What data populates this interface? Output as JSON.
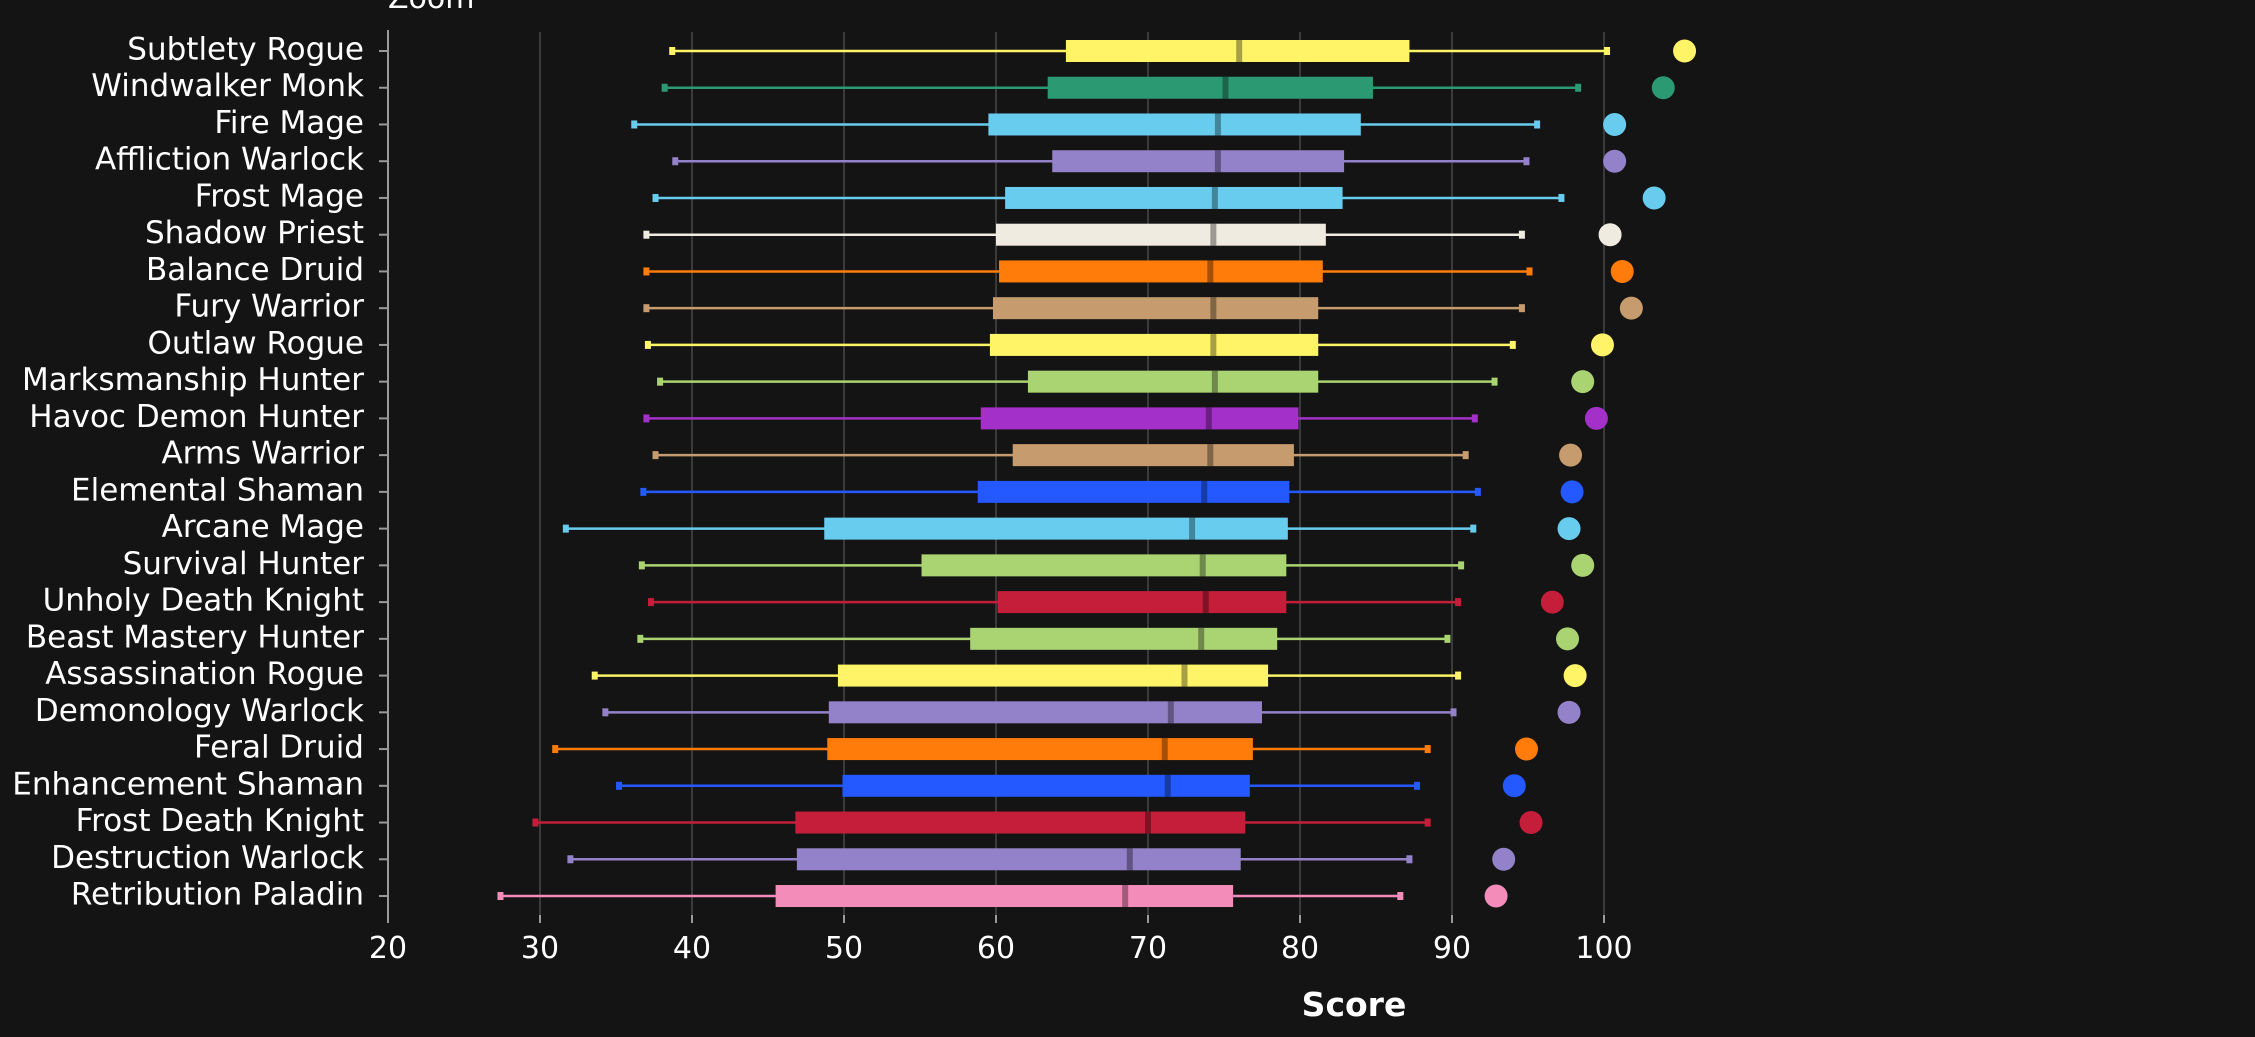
{
  "top_label": "Zoom",
  "chart_data": {
    "type": "boxplot",
    "xlabel": "Score",
    "xlim": [
      20,
      106
    ],
    "xticks": [
      20,
      30,
      40,
      50,
      60,
      70,
      80,
      90,
      100
    ],
    "grid": "vertical",
    "marker_series_note": "dots show maximum",
    "categories": [
      {
        "name": "Subtlety Rogue",
        "color": "#fff468",
        "min": 38.7,
        "q1": 64.6,
        "median": 76.0,
        "q3": 87.2,
        "max": 100.2,
        "dot": 105.3
      },
      {
        "name": "Windwalker Monk",
        "color": "#2b9a72",
        "min": 38.2,
        "q1": 63.4,
        "median": 75.1,
        "q3": 84.8,
        "max": 98.3,
        "dot": 103.9
      },
      {
        "name": "Fire Mage",
        "color": "#68ccef",
        "min": 36.2,
        "q1": 59.5,
        "median": 74.6,
        "q3": 84.0,
        "max": 95.6,
        "dot": 100.7
      },
      {
        "name": "Affliction Warlock",
        "color": "#9382c9",
        "min": 38.9,
        "q1": 63.7,
        "median": 74.6,
        "q3": 82.9,
        "max": 94.9,
        "dot": 100.7
      },
      {
        "name": "Frost Mage",
        "color": "#68ccef",
        "min": 37.6,
        "q1": 60.6,
        "median": 74.4,
        "q3": 82.8,
        "max": 97.2,
        "dot": 103.3
      },
      {
        "name": "Shadow Priest",
        "color": "#f0ebe0",
        "min": 37.0,
        "q1": 60.0,
        "median": 74.3,
        "q3": 81.7,
        "max": 94.6,
        "dot": 100.4
      },
      {
        "name": "Balance Druid",
        "color": "#ff7c0a",
        "min": 37.0,
        "q1": 60.2,
        "median": 74.1,
        "q3": 81.5,
        "max": 95.1,
        "dot": 101.2
      },
      {
        "name": "Fury Warrior",
        "color": "#c69b6d",
        "min": 37.0,
        "q1": 59.8,
        "median": 74.3,
        "q3": 81.2,
        "max": 94.6,
        "dot": 101.8
      },
      {
        "name": "Outlaw Rogue",
        "color": "#fff468",
        "min": 37.1,
        "q1": 59.6,
        "median": 74.3,
        "q3": 81.2,
        "max": 94.0,
        "dot": 99.9
      },
      {
        "name": "Marksmanship Hunter",
        "color": "#aad372",
        "min": 37.9,
        "q1": 62.1,
        "median": 74.4,
        "q3": 81.2,
        "max": 92.8,
        "dot": 98.6
      },
      {
        "name": "Havoc Demon Hunter",
        "color": "#a330c9",
        "min": 37.0,
        "q1": 59.0,
        "median": 74.0,
        "q3": 79.9,
        "max": 91.5,
        "dot": 99.5
      },
      {
        "name": "Arms Warrior",
        "color": "#c69b6d",
        "min": 37.6,
        "q1": 61.1,
        "median": 74.1,
        "q3": 79.6,
        "max": 90.9,
        "dot": 97.8
      },
      {
        "name": "Elemental Shaman",
        "color": "#2359ff",
        "min": 36.8,
        "q1": 58.8,
        "median": 73.7,
        "q3": 79.3,
        "max": 91.7,
        "dot": 97.9
      },
      {
        "name": "Arcane Mage",
        "color": "#68ccef",
        "min": 31.7,
        "q1": 48.7,
        "median": 72.9,
        "q3": 79.2,
        "max": 91.4,
        "dot": 97.7
      },
      {
        "name": "Survival Hunter",
        "color": "#aad372",
        "min": 36.7,
        "q1": 55.1,
        "median": 73.6,
        "q3": 79.1,
        "max": 90.6,
        "dot": 98.6
      },
      {
        "name": "Unholy Death Knight",
        "color": "#c41e3a",
        "min": 37.3,
        "q1": 60.1,
        "median": 73.8,
        "q3": 79.1,
        "max": 90.4,
        "dot": 96.6
      },
      {
        "name": "Beast Mastery Hunter",
        "color": "#aad372",
        "min": 36.6,
        "q1": 58.3,
        "median": 73.5,
        "q3": 78.5,
        "max": 89.7,
        "dot": 97.6
      },
      {
        "name": "Assassination Rogue",
        "color": "#fff468",
        "min": 33.6,
        "q1": 49.6,
        "median": 72.4,
        "q3": 77.9,
        "max": 90.4,
        "dot": 98.1
      },
      {
        "name": "Demonology Warlock",
        "color": "#9382c9",
        "min": 34.3,
        "q1": 49.0,
        "median": 71.5,
        "q3": 77.5,
        "max": 90.1,
        "dot": 97.7
      },
      {
        "name": "Feral Druid",
        "color": "#ff7c0a",
        "min": 31.0,
        "q1": 48.9,
        "median": 71.1,
        "q3": 76.9,
        "max": 88.4,
        "dot": 94.9
      },
      {
        "name": "Enhancement Shaman",
        "color": "#2359ff",
        "min": 35.2,
        "q1": 49.9,
        "median": 71.3,
        "q3": 76.7,
        "max": 87.7,
        "dot": 94.1
      },
      {
        "name": "Frost Death Knight",
        "color": "#c41e3a",
        "min": 29.7,
        "q1": 46.8,
        "median": 70.0,
        "q3": 76.4,
        "max": 88.4,
        "dot": 95.2
      },
      {
        "name": "Destruction Warlock",
        "color": "#9382c9",
        "min": 32.0,
        "q1": 46.9,
        "median": 68.8,
        "q3": 76.1,
        "max": 87.2,
        "dot": 93.4
      },
      {
        "name": "Retribution Paladin",
        "color": "#f48cba",
        "min": 27.4,
        "q1": 45.5,
        "median": 68.5,
        "q3": 75.6,
        "max": 86.6,
        "dot": 92.9
      }
    ]
  }
}
